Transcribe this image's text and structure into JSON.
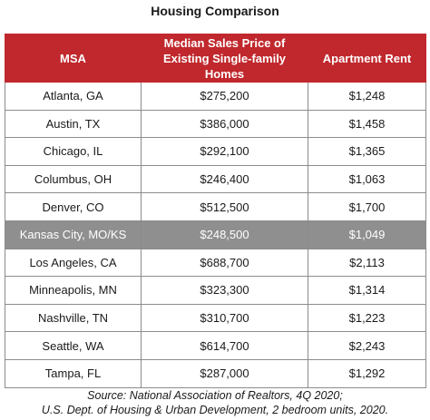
{
  "title": "Housing Comparison",
  "headers": [
    "MSA",
    "Median Sales Price of Existing Single-family Homes",
    "Apartment Rent"
  ],
  "header_lines": {
    "col2_line1": "Median Sales Price of",
    "col2_line2": "Existing Single-family Homes"
  },
  "highlight_color": "#8f8f8f",
  "header_color": "#c0282d",
  "rows": [
    {
      "msa": "Atlanta, GA",
      "price": "$275,200",
      "rent": "$1,248"
    },
    {
      "msa": "Austin, TX",
      "price": "$386,000",
      "rent": "$1,458"
    },
    {
      "msa": "Chicago, IL",
      "price": "$292,100",
      "rent": "$1,365"
    },
    {
      "msa": "Columbus, OH",
      "price": "$246,400",
      "rent": "$1,063"
    },
    {
      "msa": "Denver, CO",
      "price": "$512,500",
      "rent": "$1,700"
    },
    {
      "msa": "Kansas City, MO/KS",
      "price": "$248,500",
      "rent": "$1,049",
      "highlight": true
    },
    {
      "msa": "Los Angeles, CA",
      "price": "$688,700",
      "rent": "$2,113"
    },
    {
      "msa": "Minneapolis, MN",
      "price": "$323,300",
      "rent": "$1,314"
    },
    {
      "msa": "Nashville, TN",
      "price": "$310,700",
      "rent": "$1,223"
    },
    {
      "msa": "Seattle, WA",
      "price": "$614,700",
      "rent": "$2,243"
    },
    {
      "msa": "Tampa, FL",
      "price": "$287,000",
      "rent": "$1,292"
    }
  ],
  "source": {
    "line1": "Source: National Association of Realtors, 4Q 2020;",
    "line2": "U.S. Dept. of Housing & Urban Development, 2 bedroom units, 2020."
  }
}
